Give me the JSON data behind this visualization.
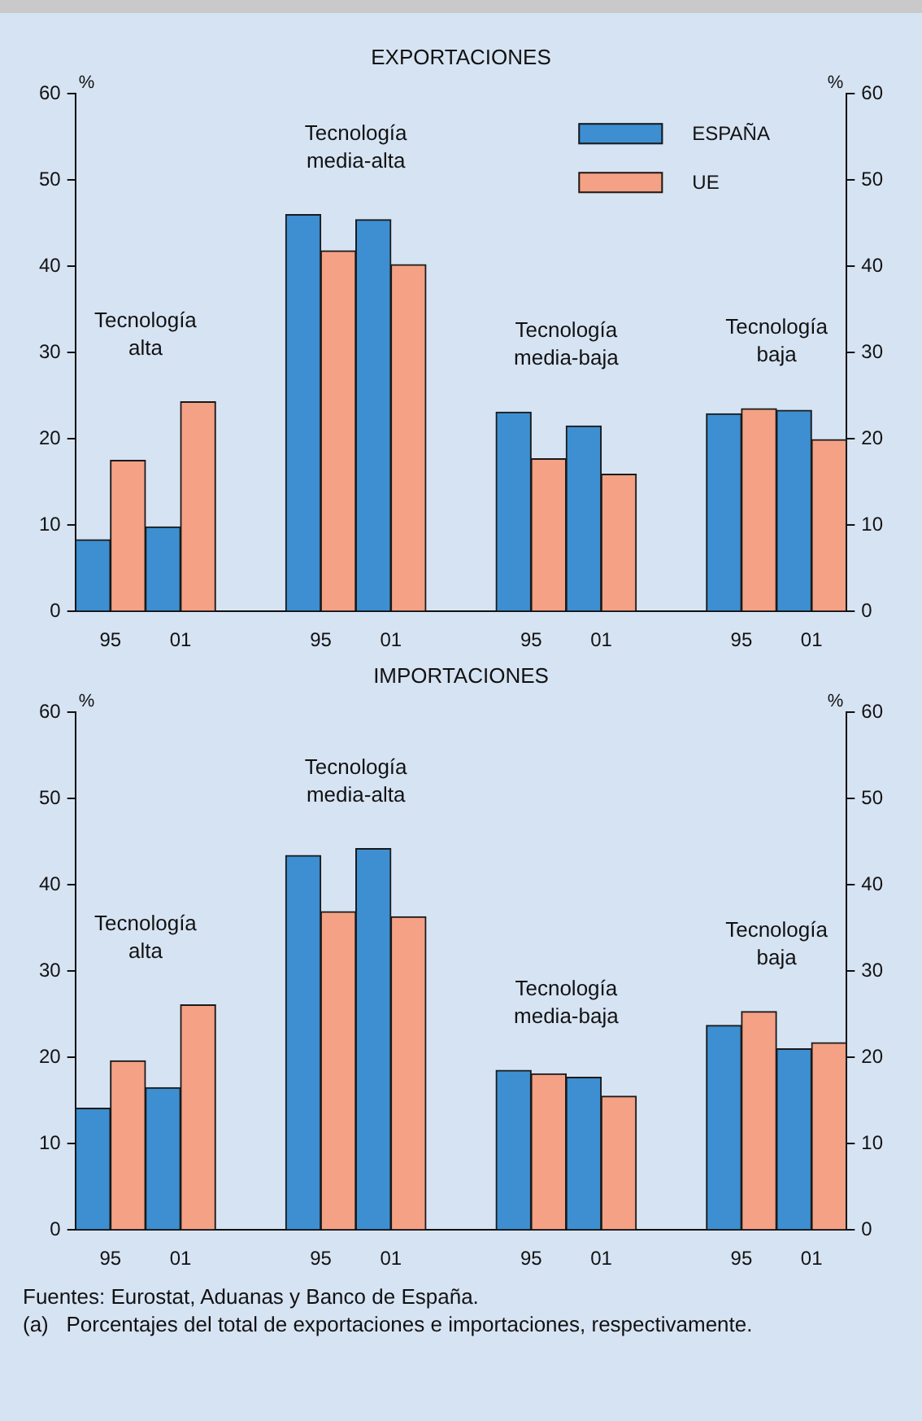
{
  "chart_data": [
    {
      "type": "bar",
      "title": "EXPORTACIONES",
      "ylabel": "%",
      "y2label": "%",
      "categories": [
        "95",
        "01",
        null,
        "95",
        "01",
        null,
        "95",
        "01",
        null,
        "95",
        "01"
      ],
      "series": [
        {
          "name": "ESPAÑA",
          "color": "#3d8fd1",
          "values": [
            8.3,
            9.8,
            null,
            46.0,
            45.4,
            null,
            23.1,
            21.5,
            null,
            22.9,
            23.3
          ]
        },
        {
          "name": "UE",
          "color": "#f4a185",
          "values": [
            17.5,
            24.3,
            null,
            41.8,
            40.2,
            null,
            17.7,
            15.9,
            null,
            23.5,
            19.9
          ]
        }
      ],
      "ylim": [
        0,
        60
      ],
      "yticks": [
        0,
        10,
        20,
        30,
        40,
        50,
        60
      ],
      "y2lim": [
        0,
        60
      ],
      "y2ticks": [
        0,
        10,
        20,
        30,
        40,
        50,
        60
      ],
      "legend": "top right",
      "annotations": [
        "Tecnología alta",
        "Tecnología media-alta",
        "Tecnología media-baja",
        "Tecnología baja"
      ]
    },
    {
      "type": "bar",
      "title": "IMPORTACIONES",
      "ylabel": "%",
      "y2label": "%",
      "categories": [
        "95",
        "01",
        null,
        "95",
        "01",
        null,
        "95",
        "01",
        null,
        "95",
        "01"
      ],
      "series": [
        {
          "color": "#3d8fd1",
          "values": [
            14.1,
            16.5,
            null,
            43.4,
            44.2,
            null,
            18.5,
            17.7,
            null,
            23.7,
            21.0
          ]
        },
        {
          "color": "#f4a185",
          "values": [
            19.6,
            26.1,
            null,
            36.9,
            36.3,
            null,
            18.1,
            15.5,
            null,
            25.3,
            21.7
          ]
        }
      ],
      "ylim": [
        0,
        60
      ],
      "yticks": [
        0,
        10,
        20,
        30,
        40,
        50,
        60
      ],
      "y2lim": [
        0,
        60
      ],
      "y2ticks": [
        0,
        10,
        20,
        30,
        40,
        50,
        60
      ],
      "annotations": [
        "Tecnología alta",
        "Tecnología media-alta",
        "Tecnología media-baja",
        "Tecnología baja",
        "Fuentes: Eurostat, Aduanas y Banco de España.",
        "(a)   Porcentajes del total de exportaciones e importaciones, respectivamente."
      ]
    }
  ]
}
